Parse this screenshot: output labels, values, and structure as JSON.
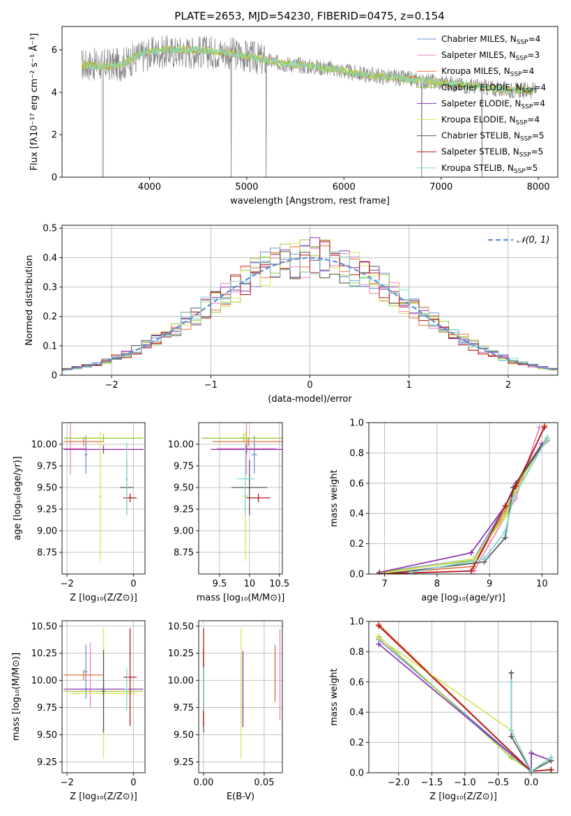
{
  "figure": {
    "title": "PLATE=2653, MJD=54230, FIBERID=0475, z=0.154"
  },
  "models": [
    {
      "name": "Chabrier MILES",
      "nssp": "4",
      "color": "#6b8fd6"
    },
    {
      "name": "Salpeter MILES",
      "nssp": "3",
      "color": "#ee82c0"
    },
    {
      "name": "Kroupa MILES",
      "nssp": "4",
      "color": "#e8733a"
    },
    {
      "name": "Chabrier ELODIE",
      "nssp": "4",
      "color": "#9acd32"
    },
    {
      "name": "Salpeter ELODIE",
      "nssp": "4",
      "color": "#8b2fb0"
    },
    {
      "name": "Kroupa ELODIE",
      "nssp": "4",
      "color": "#d7e35a"
    },
    {
      "name": "Chabrier STELIB",
      "nssp": "5",
      "color": "#555555"
    },
    {
      "name": "Salpeter STELIB",
      "nssp": "5",
      "color": "#b01515"
    },
    {
      "name": "Kroupa STELIB",
      "nssp": "5",
      "color": "#7fd6d6"
    }
  ],
  "chart_data": [
    {
      "id": "spectrum",
      "type": "line",
      "xlabel": "wavelength [Angstrom, rest frame]",
      "ylabel": "Flux [fλ10⁻¹⁷ erg cm⁻² s⁻¹ Å⁻¹]",
      "xlim": [
        3100,
        8200
      ],
      "ylim": [
        0,
        7.1
      ],
      "xticks": [
        4000,
        5000,
        6000,
        7000,
        8000
      ],
      "yticks": [
        0,
        2,
        4,
        6
      ],
      "x": [
        3300,
        3500,
        3700,
        3900,
        4100,
        4300,
        4500,
        4700,
        4900,
        5100,
        5300,
        5500,
        5700,
        5900,
        6100,
        6300,
        6500,
        6700,
        6900,
        7100,
        7300,
        7500,
        7700,
        7900,
        8000
      ],
      "series": [
        {
          "name": "data",
          "values": [
            5.3,
            5.3,
            5.3,
            5.7,
            5.9,
            5.9,
            5.9,
            5.9,
            5.8,
            5.6,
            5.4,
            5.3,
            5.2,
            5.1,
            4.9,
            4.8,
            4.7,
            4.6,
            4.5,
            4.4,
            4.3,
            4.2,
            4.1,
            4.1,
            4.1
          ]
        },
        {
          "name": "model",
          "values": [
            5.3,
            5.2,
            5.3,
            5.8,
            6.0,
            6.0,
            6.0,
            5.9,
            5.8,
            5.6,
            5.4,
            5.3,
            5.2,
            5.1,
            4.9,
            4.8,
            4.7,
            4.6,
            4.5,
            4.4,
            4.3,
            4.2,
            4.1,
            4.1,
            4.1
          ]
        }
      ]
    },
    {
      "id": "residuals",
      "type": "histogram",
      "xlabel": "(data-model)/error",
      "ylabel": "Normed distribution",
      "xlim": [
        -2.5,
        2.5
      ],
      "ylim": [
        0,
        0.51
      ],
      "xticks": [
        -2,
        -1,
        0,
        1,
        2
      ],
      "yticks": [
        0.0,
        0.1,
        0.2,
        0.3,
        0.4,
        0.5
      ],
      "grid": true,
      "bin_width": 0.1,
      "bin_start": -2.5,
      "reference": {
        "label": "𝒩(0, 1)",
        "mean": 0,
        "sigma": 1,
        "color": "#5b8ed8"
      },
      "legend": "top-right"
    },
    {
      "id": "age-vs-Z",
      "type": "errorbar",
      "xlabel": "Z [log₁₀(Z/Z⊙)]",
      "ylabel": "age  [log₁₀(age/yr)]",
      "xlim": [
        -2.15,
        0.35
      ],
      "ylim": [
        8.5,
        10.25
      ],
      "xticks": [
        -2,
        0
      ],
      "yticks": [
        8.75,
        9.0,
        9.25,
        9.5,
        9.75,
        10.0
      ],
      "grid": true,
      "points": [
        {
          "m": 0,
          "x": -1.43,
          "xerr": 0.05,
          "y": 9.88,
          "yerr": 0.22
        },
        {
          "m": 1,
          "x": -1.9,
          "xerr": 0.5,
          "y": 9.95,
          "yerr": 0.3
        },
        {
          "m": 2,
          "x": -1.5,
          "xerr": 0.6,
          "y": 10.03,
          "yerr": 0.05
        },
        {
          "m": 3,
          "x": -0.9,
          "xerr": 1.2,
          "y": 10.07,
          "yerr": 0.05
        },
        {
          "m": 4,
          "x": -0.9,
          "xerr": 1.2,
          "y": 9.94,
          "yerr": 0.05
        },
        {
          "m": 5,
          "x": -1.0,
          "xerr": 0.05,
          "y": 9.4,
          "yerr": 0.75
        },
        {
          "m": 6,
          "x": -0.2,
          "xerr": 0.2,
          "y": 9.5,
          "yerr": 0.32
        },
        {
          "m": 7,
          "x": -0.1,
          "xerr": 0.2,
          "y": 9.38,
          "yerr": 0.05
        },
        {
          "m": 8,
          "x": -0.2,
          "xerr": 0.05,
          "y": 9.6,
          "yerr": 0.42
        }
      ]
    },
    {
      "id": "age-vs-mass",
      "type": "errorbar",
      "xlabel": "mass [log₁₀(M/M⊙)]",
      "ylabel": "",
      "xlim": [
        9.15,
        10.55
      ],
      "ylim": [
        8.5,
        10.25
      ],
      "xticks": [
        9.5,
        10.0,
        10.5
      ],
      "yticks": [
        8.75,
        9.0,
        9.25,
        9.5,
        9.75,
        10.0
      ],
      "grid": true,
      "points": [
        {
          "m": 0,
          "x": 10.08,
          "xerr": 0.05,
          "y": 9.88,
          "yerr": 0.22
        },
        {
          "m": 1,
          "x": 9.95,
          "xerr": 0.5,
          "y": 9.95,
          "yerr": 0.3
        },
        {
          "m": 2,
          "x": 9.98,
          "xerr": 0.6,
          "y": 10.03,
          "yerr": 0.05
        },
        {
          "m": 3,
          "x": 9.9,
          "xerr": 0.7,
          "y": 10.07,
          "yerr": 0.05
        },
        {
          "m": 4,
          "x": 9.95,
          "xerr": 0.6,
          "y": 9.94,
          "yerr": 0.05
        },
        {
          "m": 5,
          "x": 9.93,
          "xerr": 0.05,
          "y": 9.4,
          "yerr": 0.75
        },
        {
          "m": 6,
          "x": 10.0,
          "xerr": 0.3,
          "y": 9.5,
          "yerr": 0.32
        },
        {
          "m": 7,
          "x": 10.15,
          "xerr": 0.2,
          "y": 9.38,
          "yerr": 0.05
        },
        {
          "m": 8,
          "x": 9.93,
          "xerr": 0.15,
          "y": 9.6,
          "yerr": 0.42
        }
      ]
    },
    {
      "id": "cumulative-age",
      "type": "line",
      "xlabel": "age  [log₁₀(age/yr)]",
      "ylabel": "mass weight",
      "xlim": [
        6.7,
        10.3
      ],
      "ylim": [
        0,
        1.0
      ],
      "xticks": [
        7,
        8,
        9,
        10
      ],
      "yticks": [
        0.0,
        0.2,
        0.4,
        0.6,
        0.8,
        1.0
      ],
      "grid": true,
      "series": [
        {
          "m": 0,
          "x": [
            6.9,
            8.7,
            9.3,
            9.5,
            10.1
          ],
          "values": [
            0.01,
            0.1,
            0.45,
            0.6,
            0.88
          ]
        },
        {
          "m": 1,
          "x": [
            6.9,
            8.7,
            9.5,
            9.95
          ],
          "values": [
            0.0,
            0.02,
            0.5,
            0.97
          ]
        },
        {
          "m": 2,
          "x": [
            6.9,
            8.7,
            9.5,
            10.05
          ],
          "values": [
            0.0,
            0.05,
            0.55,
            0.98
          ]
        },
        {
          "m": 3,
          "x": [
            6.9,
            8.7,
            9.3,
            9.5,
            10.1
          ],
          "values": [
            0.01,
            0.09,
            0.4,
            0.58,
            0.9
          ]
        },
        {
          "m": 4,
          "x": [
            6.9,
            8.65,
            9.3,
            9.5,
            10.0
          ],
          "values": [
            0.01,
            0.14,
            0.45,
            0.6,
            0.86
          ]
        },
        {
          "m": 5,
          "x": [
            6.9,
            8.7,
            9.3,
            9.5,
            10.1
          ],
          "values": [
            0.0,
            0.1,
            0.38,
            0.55,
            0.89
          ]
        },
        {
          "m": 6,
          "x": [
            7.0,
            8.9,
            9.3,
            9.45,
            10.1
          ],
          "values": [
            0.0,
            0.08,
            0.24,
            0.57,
            0.9
          ]
        },
        {
          "m": 7,
          "x": [
            6.9,
            8.65,
            9.3,
            9.5,
            10.05
          ],
          "values": [
            0.0,
            0.02,
            0.45,
            0.58,
            0.97
          ]
        },
        {
          "m": 8,
          "x": [
            7.5,
            8.9,
            9.3,
            9.45,
            10.1
          ],
          "values": [
            0.01,
            0.1,
            0.28,
            0.5,
            0.9
          ]
        }
      ]
    },
    {
      "id": "mass-vs-Z",
      "type": "errorbar",
      "xlabel": "Z [log₁₀(Z/Z⊙)]",
      "ylabel": "mass [log₁₀(M/M⊙)]",
      "xlim": [
        -2.15,
        0.35
      ],
      "ylim": [
        9.15,
        10.55
      ],
      "xticks": [
        -2,
        0
      ],
      "yticks": [
        9.25,
        9.5,
        9.75,
        10.0,
        10.25,
        10.5
      ],
      "grid": true,
      "points": [
        {
          "m": 0,
          "x": -1.43,
          "xerr": 0.05,
          "y": 10.08,
          "yerr": 0.25
        },
        {
          "m": 1,
          "x": -1.3,
          "xerr": 0.05,
          "y": 10.05,
          "yerr": 0.3
        },
        {
          "m": 2,
          "x": -1.5,
          "xerr": 0.6,
          "y": 10.05,
          "yerr": 0.05
        },
        {
          "m": 3,
          "x": -0.9,
          "xerr": 1.2,
          "y": 9.9,
          "yerr": 0.05
        },
        {
          "m": 4,
          "x": -0.9,
          "xerr": 1.2,
          "y": 9.92,
          "yerr": 0.05
        },
        {
          "m": 5,
          "x": -0.9,
          "xerr": 1.0,
          "y": 9.88,
          "yerr": 0.6
        },
        {
          "m": 6,
          "x": -0.9,
          "xerr": 0.05,
          "y": 9.9,
          "yerr": 0.38
        },
        {
          "m": 7,
          "x": -0.1,
          "xerr": 0.2,
          "y": 10.03,
          "yerr": 0.45
        },
        {
          "m": 8,
          "x": -0.2,
          "xerr": 0.05,
          "y": 9.92,
          "yerr": 0.2
        }
      ]
    },
    {
      "id": "mass-vs-EBV",
      "type": "errorbar",
      "xlabel": "E(B-V)",
      "ylabel": "",
      "xlim": [
        -0.004,
        0.065
      ],
      "ylim": [
        9.15,
        10.55
      ],
      "xticks": [
        0.0,
        0.05
      ],
      "yticks": [
        9.25,
        9.5,
        9.75,
        10.0,
        10.25,
        10.5
      ],
      "grid": true,
      "points": [
        {
          "m": 0,
          "x": 0.059,
          "xerr": 0.0,
          "y": 10.08,
          "yerr": 0.25
        },
        {
          "m": 1,
          "x": 0.063,
          "xerr": 0.0,
          "y": 10.05,
          "yerr": 0.42
        },
        {
          "m": 2,
          "x": 0.059,
          "xerr": 0.0,
          "y": 10.05,
          "yerr": 0.25
        },
        {
          "m": 3,
          "x": 0.031,
          "xerr": 0.0,
          "y": 9.9,
          "yerr": 0.3
        },
        {
          "m": 4,
          "x": 0.0325,
          "xerr": 0.0,
          "y": 9.92,
          "yerr": 0.35
        },
        {
          "m": 5,
          "x": 0.031,
          "xerr": 0.0,
          "y": 9.88,
          "yerr": 0.6
        },
        {
          "m": 6,
          "x": 0.0,
          "xerr": 0.0,
          "y": 9.9,
          "yerr": 0.38
        },
        {
          "m": 7,
          "x": 0.0,
          "xerr": 0.0,
          "y": 10.03,
          "yerr": 0.45
        },
        {
          "m": 8,
          "x": 0.0,
          "xerr": 0.0,
          "y": 9.92,
          "yerr": 0.2
        }
      ]
    },
    {
      "id": "cumulative-Z",
      "type": "line",
      "xlabel": "Z [log₁₀(Z/Z⊙)]",
      "ylabel": "mass weight",
      "xlim": [
        -2.45,
        0.4
      ],
      "ylim": [
        0,
        1.0
      ],
      "xticks": [
        -2.0,
        -1.5,
        -1.0,
        -0.5,
        0.0
      ],
      "yticks": [
        0.0,
        0.2,
        0.4,
        0.6,
        0.8,
        1.0
      ],
      "grid": true,
      "series": [
        {
          "m": 0,
          "x": [
            -2.3,
            0.0,
            0.3
          ],
          "values": [
            0.88,
            0.01,
            0.1
          ]
        },
        {
          "m": 1,
          "x": [
            -2.3,
            0.0,
            0.3
          ],
          "values": [
            0.97,
            0.01,
            0.02
          ]
        },
        {
          "m": 2,
          "x": [
            -2.3,
            0.0,
            0.3
          ],
          "values": [
            0.98,
            0.01,
            0.02
          ]
        },
        {
          "m": 3,
          "x": [
            -2.3,
            -0.3,
            0.0,
            0.3
          ],
          "values": [
            0.9,
            0.1,
            0.01,
            0.1
          ]
        },
        {
          "m": 4,
          "x": [
            -2.3,
            0.0,
            0.0,
            0.3
          ],
          "values": [
            0.85,
            0.01,
            0.13,
            0.08
          ]
        },
        {
          "m": 5,
          "x": [
            -2.3,
            -0.3,
            0.0,
            0.3
          ],
          "values": [
            0.89,
            0.28,
            0.01,
            0.08
          ]
        },
        {
          "m": 6,
          "x": [
            -0.3,
            -0.3,
            0.0,
            0.3
          ],
          "values": [
            0.66,
            0.24,
            0.01,
            0.08
          ]
        },
        {
          "m": 7,
          "x": [
            -2.3,
            0.0,
            0.3
          ],
          "values": [
            0.97,
            0.01,
            0.02
          ]
        },
        {
          "m": 8,
          "x": [
            -0.3,
            -0.3,
            0.0,
            0.3
          ],
          "values": [
            0.6,
            0.28,
            0.01,
            0.1
          ]
        }
      ]
    }
  ]
}
